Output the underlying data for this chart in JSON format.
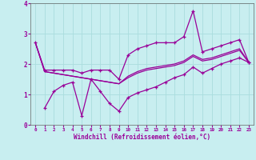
{
  "title": "",
  "xlabel": "Windchill (Refroidissement éolien,°C)",
  "ylabel": "",
  "background_color": "#c8eef0",
  "line_color": "#990099",
  "grid_color": "#aadddd",
  "xlim": [
    -0.5,
    23.5
  ],
  "ylim": [
    0,
    4
  ],
  "yticks": [
    0,
    1,
    2,
    3,
    4
  ],
  "xticks": [
    0,
    1,
    2,
    3,
    4,
    5,
    6,
    7,
    8,
    9,
    10,
    11,
    12,
    13,
    14,
    15,
    16,
    17,
    18,
    19,
    20,
    21,
    22,
    23
  ],
  "series1_x": [
    0,
    1,
    2,
    3,
    4,
    5,
    6,
    7,
    8,
    9,
    10,
    11,
    12,
    13,
    14,
    15,
    16,
    17,
    18,
    19,
    20,
    21,
    22,
    23
  ],
  "series1_y": [
    2.7,
    1.8,
    1.8,
    1.8,
    1.8,
    1.7,
    1.8,
    1.8,
    1.8,
    1.5,
    2.3,
    2.5,
    2.6,
    2.7,
    2.7,
    2.7,
    2.9,
    3.75,
    2.4,
    2.5,
    2.6,
    2.7,
    2.8,
    2.05
  ],
  "series2_x": [
    1,
    2,
    3,
    4,
    5,
    6,
    7,
    8,
    9,
    10,
    11,
    12,
    13,
    14,
    15,
    16,
    17,
    18,
    19,
    20,
    21,
    22,
    23
  ],
  "series2_y": [
    0.55,
    1.1,
    1.3,
    1.4,
    0.3,
    1.5,
    1.1,
    0.7,
    0.45,
    0.9,
    1.05,
    1.15,
    1.25,
    1.4,
    1.55,
    1.65,
    1.9,
    1.7,
    1.85,
    2.0,
    2.1,
    2.2,
    2.05
  ],
  "series3_x": [
    0,
    1,
    2,
    3,
    4,
    5,
    6,
    7,
    8,
    9,
    10,
    11,
    12,
    13,
    14,
    15,
    16,
    17,
    18,
    19,
    20,
    21,
    22,
    23
  ],
  "series3_y": [
    2.7,
    1.75,
    1.7,
    1.65,
    1.6,
    1.55,
    1.5,
    1.45,
    1.4,
    1.35,
    1.6,
    1.75,
    1.85,
    1.9,
    1.95,
    2.0,
    2.1,
    2.3,
    2.15,
    2.2,
    2.3,
    2.4,
    2.5,
    2.05
  ],
  "series4_x": [
    0,
    1,
    2,
    3,
    4,
    5,
    6,
    7,
    8,
    9,
    10,
    11,
    12,
    13,
    14,
    15,
    16,
    17,
    18,
    19,
    20,
    21,
    22,
    23
  ],
  "series4_y": [
    2.7,
    1.75,
    1.7,
    1.65,
    1.6,
    1.55,
    1.5,
    1.45,
    1.4,
    1.35,
    1.55,
    1.7,
    1.8,
    1.85,
    1.9,
    1.95,
    2.05,
    2.25,
    2.1,
    2.15,
    2.25,
    2.35,
    2.45,
    2.05
  ]
}
